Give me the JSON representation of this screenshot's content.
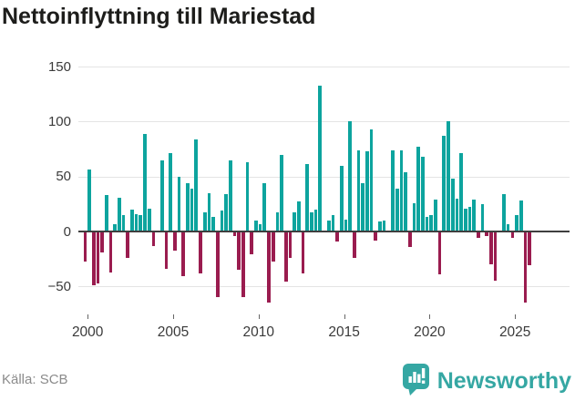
{
  "header": {
    "title": "Nettoinflyttning till Mariestad"
  },
  "chart_data": {
    "type": "bar",
    "title": "Nettoinflyttning till Mariestad",
    "xlabel": "",
    "ylabel": "",
    "ylim": [
      -75,
      160
    ],
    "grid": "horizontal",
    "start_quarter": "1999Q4",
    "end_quarter": "2025Q4",
    "frequency": "quarterly",
    "values": [
      -27,
      56,
      -49,
      -47,
      -19,
      33,
      -37,
      7,
      31,
      15,
      -24,
      20,
      16,
      15,
      89,
      21,
      -13,
      1,
      65,
      -34,
      71,
      -17,
      50,
      -41,
      44,
      39,
      84,
      -38,
      17,
      35,
      13,
      -60,
      19,
      34,
      65,
      -4,
      -35,
      -60,
      63,
      -21,
      10,
      7,
      44,
      -65,
      -27,
      17,
      70,
      -46,
      -24,
      17,
      27,
      -38,
      61,
      17,
      20,
      133,
      1,
      10,
      15,
      -9,
      60,
      11,
      100,
      -24,
      74,
      44,
      73,
      93,
      -8,
      9,
      10,
      1,
      74,
      39,
      74,
      54,
      -14,
      26,
      77,
      68,
      13,
      15,
      29,
      -39,
      87,
      100,
      48,
      30,
      71,
      21,
      22,
      29,
      -6,
      25,
      -4,
      -30,
      -45,
      1,
      34,
      7,
      -6,
      15,
      28,
      -65,
      -31
    ],
    "x_ticks": [
      "2000",
      "2005",
      "2010",
      "2015",
      "2020",
      "2025"
    ],
    "y_ticks": [
      {
        "label": "150",
        "value": 150
      },
      {
        "label": "100",
        "value": 100
      },
      {
        "label": "50",
        "value": 50
      },
      {
        "label": "0",
        "value": 0
      },
      {
        "label": "−50",
        "value": -50
      }
    ],
    "positive_color": "#0da49e",
    "negative_color": "#9a1c4f"
  },
  "footer": {
    "source": "Källa: SCB",
    "brand": "Newsworthy",
    "brand_color": "#35a7a3"
  }
}
